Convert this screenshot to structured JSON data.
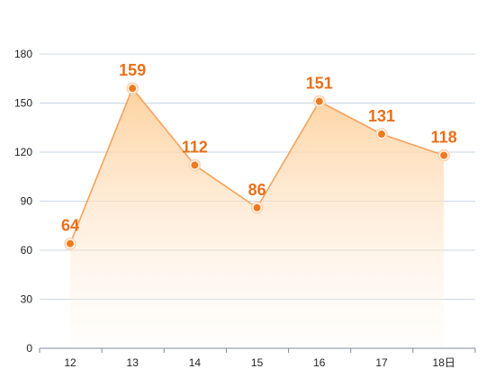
{
  "chart_data": {
    "type": "area",
    "categories": [
      "12",
      "13",
      "14",
      "15",
      "16",
      "17",
      "18日"
    ],
    "values": [
      64,
      159,
      112,
      86,
      151,
      131,
      118
    ],
    "ylim": [
      0,
      180
    ],
    "yticks": [
      0,
      30,
      60,
      90,
      120,
      150,
      180
    ],
    "grid": true,
    "data_labels": true,
    "colors": {
      "line": "#f5a25d",
      "point": "#f07a1f",
      "label": "#e8701a",
      "area_top": "#ffcf99",
      "grid": "#c9d8e6",
      "axis": "#7f8c99"
    }
  }
}
